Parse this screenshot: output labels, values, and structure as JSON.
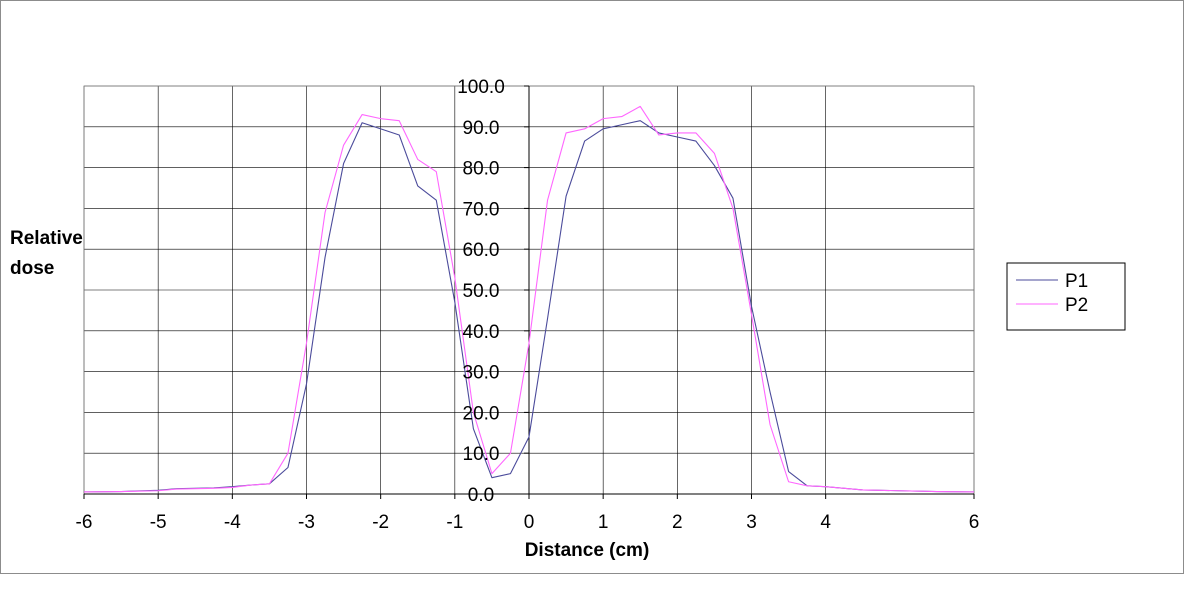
{
  "chart_data": {
    "type": "line",
    "title": "",
    "xlabel": "Distance (cm)",
    "ylabel_lines": [
      "Relative",
      "dose"
    ],
    "xlim": [
      -6,
      6
    ],
    "ylim": [
      0,
      100
    ],
    "x_ticks": [
      -6,
      -5,
      -4,
      -3,
      -2,
      -1,
      0,
      1,
      2,
      3,
      4,
      6
    ],
    "x_tick_labels": [
      "-6",
      "-5",
      "-4",
      "-3",
      "-2",
      "-1",
      "0",
      "1",
      "2",
      "3",
      "4",
      "6"
    ],
    "y_ticks": [
      0,
      10,
      20,
      30,
      40,
      50,
      60,
      70,
      80,
      90,
      100
    ],
    "y_tick_labels": [
      "0.0",
      "10.0",
      "20.0",
      "30.0",
      "40.0",
      "50.0",
      "60.0",
      "70.0",
      "80.0",
      "90.0",
      "100.0"
    ],
    "grid": true,
    "legend_position": "right",
    "series": [
      {
        "name": "P1",
        "color": "#4b4b9b",
        "points": [
          [
            -6.0,
            0.5
          ],
          [
            -5.5,
            0.6
          ],
          [
            -5.0,
            0.9
          ],
          [
            -4.75,
            1.3
          ],
          [
            -4.5,
            1.4
          ],
          [
            -4.25,
            1.5
          ],
          [
            -4.0,
            1.8
          ],
          [
            -3.75,
            2.2
          ],
          [
            -3.5,
            2.5
          ],
          [
            -3.25,
            6.5
          ],
          [
            -3.0,
            27.0
          ],
          [
            -2.75,
            58.0
          ],
          [
            -2.5,
            81.0
          ],
          [
            -2.25,
            91.0
          ],
          [
            -2.0,
            89.5
          ],
          [
            -1.75,
            88.0
          ],
          [
            -1.5,
            75.5
          ],
          [
            -1.25,
            72.0
          ],
          [
            -1.0,
            47.0
          ],
          [
            -0.75,
            16.0
          ],
          [
            -0.5,
            4.0
          ],
          [
            -0.25,
            5.0
          ],
          [
            0.0,
            14.0
          ],
          [
            0.25,
            43.0
          ],
          [
            0.5,
            73.0
          ],
          [
            0.75,
            86.5
          ],
          [
            1.0,
            89.5
          ],
          [
            1.25,
            90.5
          ],
          [
            1.5,
            91.5
          ],
          [
            1.75,
            88.5
          ],
          [
            2.0,
            87.5
          ],
          [
            2.25,
            86.5
          ],
          [
            2.5,
            80.5
          ],
          [
            2.75,
            72.5
          ],
          [
            3.0,
            46.0
          ],
          [
            3.25,
            25.0
          ],
          [
            3.5,
            5.5
          ],
          [
            3.75,
            2.0
          ],
          [
            4.0,
            1.8
          ],
          [
            4.5,
            1.0
          ],
          [
            5.0,
            0.8
          ],
          [
            5.5,
            0.6
          ],
          [
            6.0,
            0.5
          ]
        ]
      },
      {
        "name": "P2",
        "color": "#ff66ff",
        "points": [
          [
            -6.0,
            0.5
          ],
          [
            -5.5,
            0.6
          ],
          [
            -5.0,
            0.8
          ],
          [
            -4.75,
            1.2
          ],
          [
            -4.5,
            1.3
          ],
          [
            -4.25,
            1.4
          ],
          [
            -4.0,
            1.6
          ],
          [
            -3.75,
            2.2
          ],
          [
            -3.5,
            2.5
          ],
          [
            -3.25,
            10.0
          ],
          [
            -3.0,
            37.0
          ],
          [
            -2.75,
            69.0
          ],
          [
            -2.5,
            85.5
          ],
          [
            -2.25,
            93.0
          ],
          [
            -2.0,
            92.0
          ],
          [
            -1.75,
            91.5
          ],
          [
            -1.5,
            82.0
          ],
          [
            -1.25,
            79.0
          ],
          [
            -1.0,
            53.0
          ],
          [
            -0.75,
            20.0
          ],
          [
            -0.5,
            5.0
          ],
          [
            -0.25,
            10.0
          ],
          [
            0.0,
            37.0
          ],
          [
            0.25,
            72.0
          ],
          [
            0.5,
            88.5
          ],
          [
            0.75,
            89.5
          ],
          [
            1.0,
            92.0
          ],
          [
            1.25,
            92.5
          ],
          [
            1.5,
            95.0
          ],
          [
            1.75,
            88.0
          ],
          [
            2.0,
            88.5
          ],
          [
            2.25,
            88.5
          ],
          [
            2.5,
            83.5
          ],
          [
            2.75,
            70.0
          ],
          [
            3.0,
            44.0
          ],
          [
            3.25,
            17.0
          ],
          [
            3.5,
            3.0
          ],
          [
            3.75,
            2.0
          ],
          [
            4.0,
            1.8
          ],
          [
            4.5,
            1.0
          ],
          [
            5.0,
            0.8
          ],
          [
            5.5,
            0.6
          ],
          [
            6.0,
            0.5
          ]
        ]
      }
    ]
  }
}
